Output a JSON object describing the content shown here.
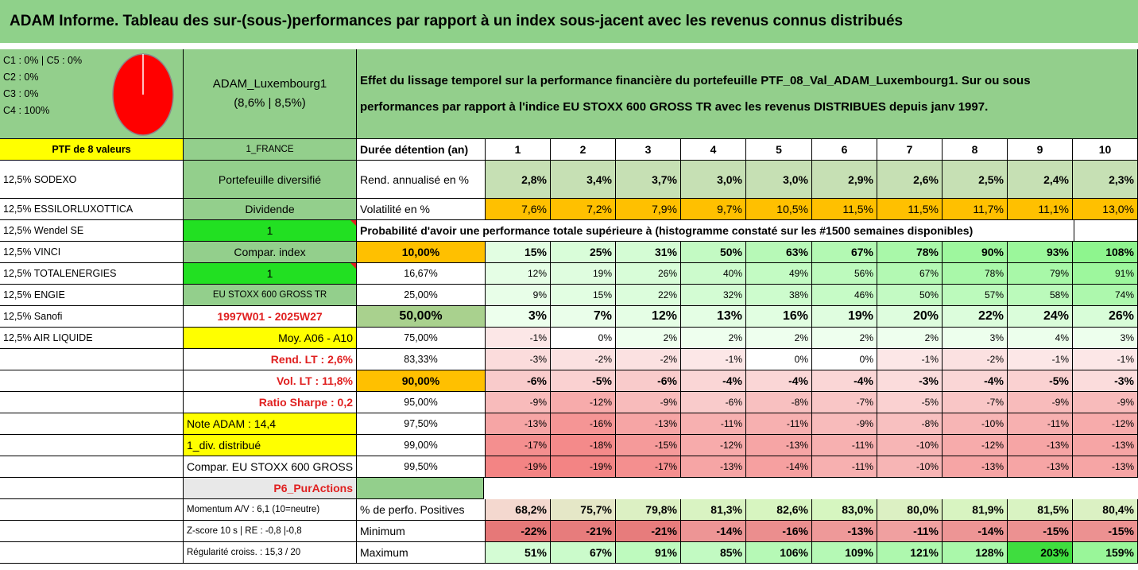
{
  "title": "ADAM Informe. Tableau des sur-(sous-)performances par rapport à un index sous-jacent avec les revenus connus distribués",
  "legend": [
    "C1 : 0% | C5 : 0%",
    "C2 : 0%",
    "C3 : 0%",
    "C4 : 100%"
  ],
  "fund": {
    "name": "ADAM_Luxembourg1",
    "sub": "(8,6% | 8,5%)"
  },
  "description": [
    "Effet du lissage temporel sur la performance financière du portefeuille PTF_08_Val_ADAM_Luxembourg1. Sur ou sous",
    "performances par rapport à l'indice EU STOXX 600 GROSS TR avec les revenus DISTRIBUES depuis janv 1997."
  ],
  "ptf_label": "PTF de 8 valeurs",
  "holdings": [
    "12,5% SODEXO",
    "12,5% ESSILORLUXOTTICA",
    "12,5% Wendel SE",
    "12,5% VINCI",
    "12,5% TOTALENERGIES",
    "12,5% ENGIE",
    "12,5% Sanofi",
    "12,5% AIR LIQUIDE"
  ],
  "info": {
    "country": "1_FRANCE",
    "diversified": "Portefeuille diversifié",
    "dividend_label": "Dividende",
    "dividend_value": "1",
    "compar_label": "Compar. index",
    "compar_value": "1",
    "index_name": "EU STOXX 600 GROSS TR",
    "period": "1997W01 - 2025W27",
    "moy": "Moy. A06 - A10",
    "rend_lt": "Rend. LT : 2,6%",
    "vol_lt": "Vol. LT : 11,8%",
    "sharpe": "Ratio Sharpe : 0,2",
    "note": "Note ADAM : 14,4",
    "div_dist": "1_div. distribué",
    "compar_full": "Compar. EU STOXX 600 GROSS TR",
    "purchase": "P6_PurActions",
    "momentum": "Momentum A/V : 6,1 (10=neutre)",
    "zscore": "Z-score 10 s | RE : -0,8 |-0,8",
    "regularity": "Régularité croiss. : 15,3 / 20"
  },
  "header": {
    "label": "Durée détention (an)",
    "years": [
      "1",
      "2",
      "3",
      "4",
      "5",
      "6",
      "7",
      "8",
      "9",
      "10"
    ]
  },
  "rend": {
    "label": "Rend. annualisé en %",
    "values": [
      "2,8%",
      "3,4%",
      "3,7%",
      "3,0%",
      "3,0%",
      "2,9%",
      "2,6%",
      "2,5%",
      "2,4%",
      "2,3%"
    ]
  },
  "vol": {
    "label": "Volatilité en %",
    "values": [
      "7,6%",
      "7,2%",
      "7,9%",
      "9,7%",
      "10,5%",
      "11,5%",
      "11,5%",
      "11,7%",
      "11,1%",
      "13,0%"
    ]
  },
  "prob_title": "Probabilité d'avoir une performance totale supérieure à (histogramme constaté sur les #1500 semaines disponibles)",
  "prob_rows": [
    {
      "threshold": "10,00%",
      "values": [
        "15%",
        "25%",
        "31%",
        "50%",
        "63%",
        "67%",
        "78%",
        "90%",
        "93%",
        "108%"
      ]
    },
    {
      "threshold": "16,67%",
      "values": [
        "12%",
        "19%",
        "26%",
        "40%",
        "49%",
        "56%",
        "67%",
        "78%",
        "79%",
        "91%"
      ]
    },
    {
      "threshold": "25,00%",
      "values": [
        "9%",
        "15%",
        "22%",
        "32%",
        "38%",
        "46%",
        "50%",
        "57%",
        "58%",
        "74%"
      ]
    },
    {
      "threshold": "50,00%",
      "values": [
        "3%",
        "7%",
        "12%",
        "13%",
        "16%",
        "19%",
        "20%",
        "22%",
        "24%",
        "26%"
      ]
    },
    {
      "threshold": "75,00%",
      "values": [
        "-1%",
        "0%",
        "2%",
        "2%",
        "2%",
        "2%",
        "2%",
        "3%",
        "4%",
        "3%"
      ]
    },
    {
      "threshold": "83,33%",
      "values": [
        "-3%",
        "-2%",
        "-2%",
        "-1%",
        "0%",
        "0%",
        "-1%",
        "-2%",
        "-1%",
        "-1%"
      ]
    },
    {
      "threshold": "90,00%",
      "values": [
        "-6%",
        "-5%",
        "-6%",
        "-4%",
        "-4%",
        "-4%",
        "-3%",
        "-4%",
        "-5%",
        "-3%"
      ]
    },
    {
      "threshold": "95,00%",
      "values": [
        "-9%",
        "-12%",
        "-9%",
        "-6%",
        "-8%",
        "-7%",
        "-5%",
        "-7%",
        "-9%",
        "-9%"
      ]
    },
    {
      "threshold": "97,50%",
      "values": [
        "-13%",
        "-16%",
        "-13%",
        "-11%",
        "-11%",
        "-9%",
        "-8%",
        "-10%",
        "-11%",
        "-12%"
      ]
    },
    {
      "threshold": "99,00%",
      "values": [
        "-17%",
        "-18%",
        "-15%",
        "-12%",
        "-13%",
        "-11%",
        "-10%",
        "-12%",
        "-13%",
        "-13%"
      ]
    },
    {
      "threshold": "99,50%",
      "values": [
        "-19%",
        "-19%",
        "-17%",
        "-13%",
        "-14%",
        "-11%",
        "-10%",
        "-13%",
        "-13%",
        "-13%"
      ]
    }
  ],
  "pos": {
    "label": "% de perfo. Positives",
    "values": [
      "68,2%",
      "75,7%",
      "79,8%",
      "81,3%",
      "82,6%",
      "83,0%",
      "80,0%",
      "81,9%",
      "81,5%",
      "80,4%"
    ]
  },
  "min": {
    "label": "Minimum",
    "values": [
      "-22%",
      "-21%",
      "-21%",
      "-14%",
      "-16%",
      "-13%",
      "-11%",
      "-14%",
      "-15%",
      "-15%"
    ]
  },
  "max": {
    "label": "Maximum",
    "values": [
      "51%",
      "67%",
      "91%",
      "85%",
      "106%",
      "109%",
      "121%",
      "128%",
      "203%",
      "159%"
    ]
  },
  "colors": {
    "header_green": "#8fd18a",
    "pie_red": "#ff0000",
    "highlight_yellow": "#ffff00",
    "highlight_orange": "#ffc000",
    "bright_green": "#22e022"
  }
}
